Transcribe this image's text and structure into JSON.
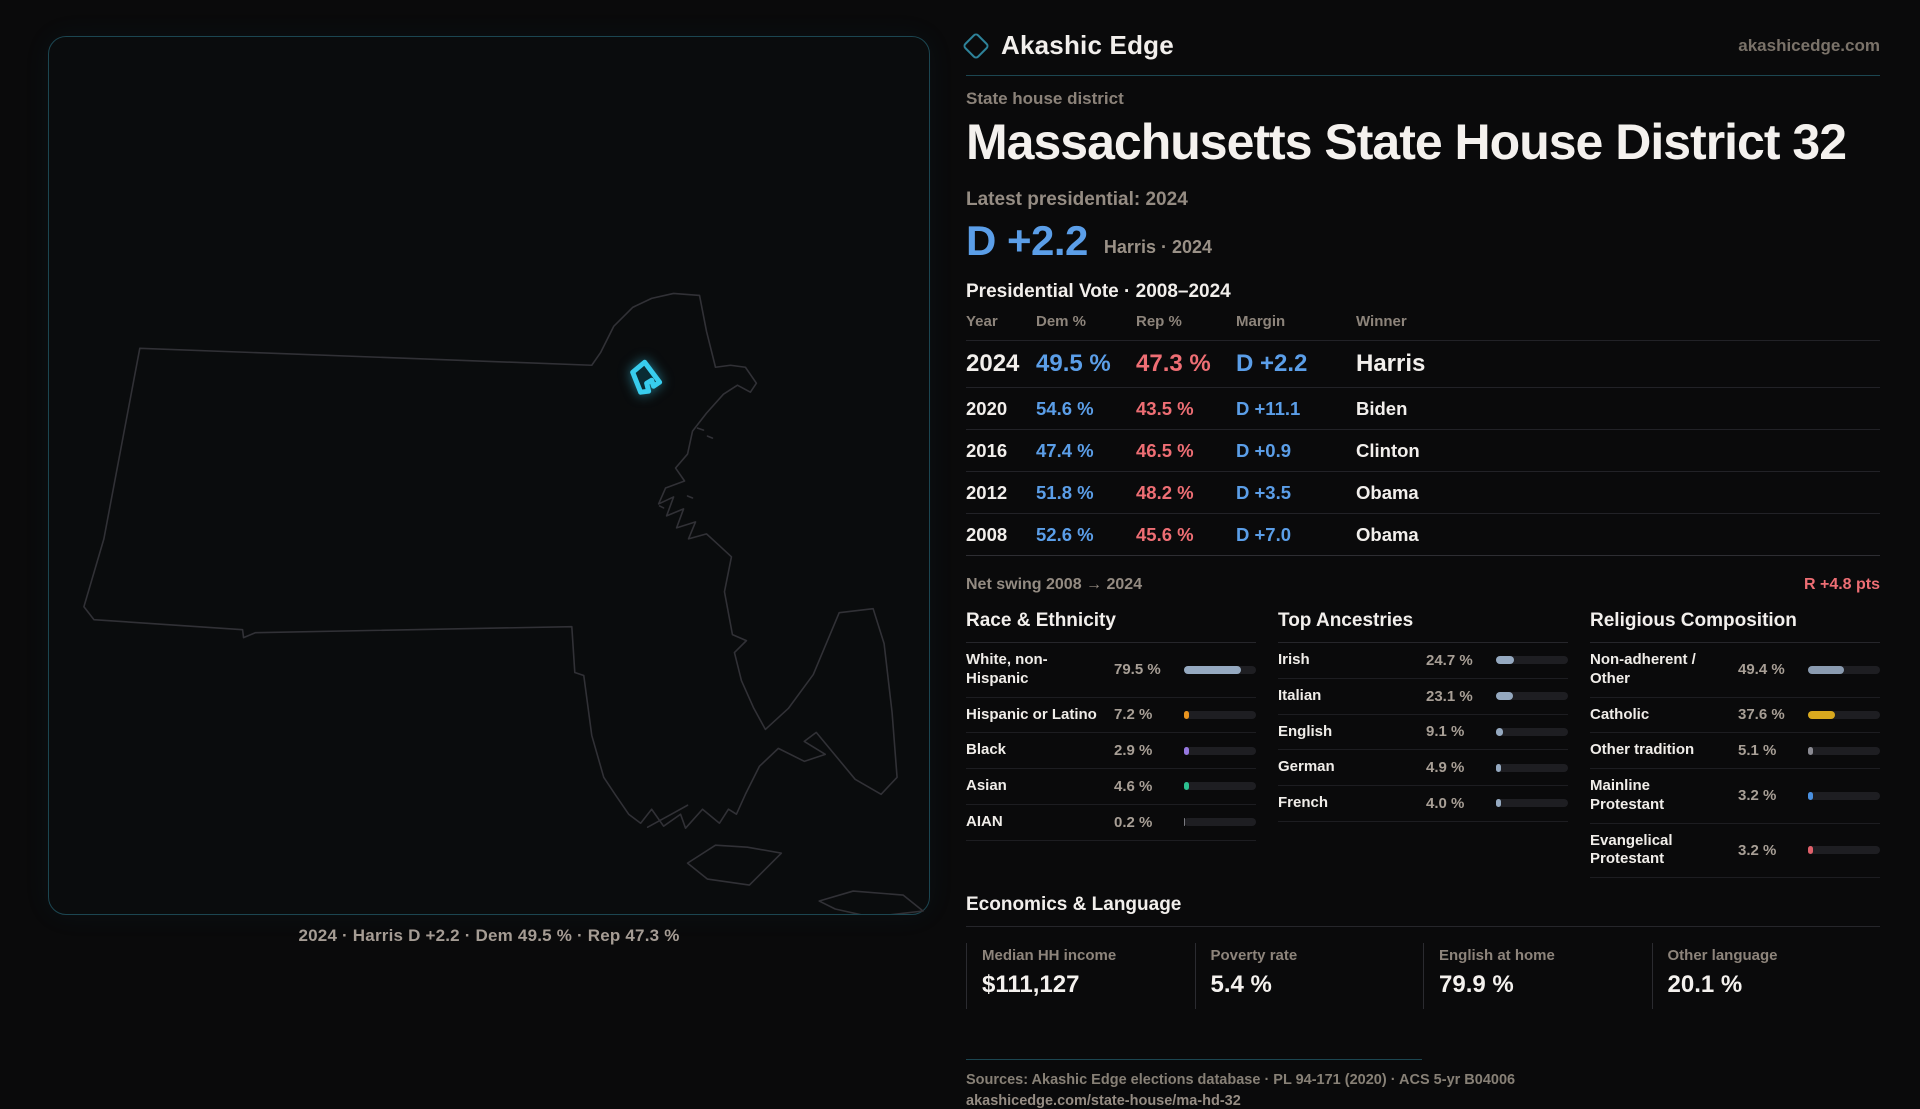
{
  "brand": {
    "name": "Akashic Edge",
    "domain": "akashicedge.com"
  },
  "page": {
    "kicker": "State house district",
    "title": "Massachusetts State House District 32",
    "latest_label": "Latest presidential: 2024",
    "margin_big": "D +2.2",
    "margin_sub": "Harris · 2024"
  },
  "table": {
    "title": "Presidential Vote · 2008–2024",
    "columns": [
      "Year",
      "Dem %",
      "Rep %",
      "Margin",
      "Winner"
    ],
    "rows": [
      {
        "year": "2024",
        "dem": "49.5 %",
        "rep": "47.3 %",
        "margin": "D +2.2",
        "winner": "Harris",
        "featured": true
      },
      {
        "year": "2020",
        "dem": "54.6 %",
        "rep": "43.5 %",
        "margin": "D +11.1",
        "winner": "Biden"
      },
      {
        "year": "2016",
        "dem": "47.4 %",
        "rep": "46.5 %",
        "margin": "D +0.9",
        "winner": "Clinton"
      },
      {
        "year": "2012",
        "dem": "51.8 %",
        "rep": "48.2 %",
        "margin": "D +3.5",
        "winner": "Obama"
      },
      {
        "year": "2008",
        "dem": "52.6 %",
        "rep": "45.6 %",
        "margin": "D +7.0",
        "winner": "Obama"
      }
    ],
    "net_swing_label": "Net swing 2008 → 2024",
    "net_swing_value": "R +4.8 pts"
  },
  "demographics": {
    "groups": [
      {
        "title": "Race & Ethnicity",
        "items": [
          {
            "label": "White, non-Hispanic",
            "value": "79.5 %",
            "pct": 79.5,
            "color": "#95a9c0"
          },
          {
            "label": "Hispanic or Latino",
            "value": "7.2 %",
            "pct": 7.2,
            "color": "#e8941f"
          },
          {
            "label": "Black",
            "value": "2.9 %",
            "pct": 2.9,
            "color": "#9678e0"
          },
          {
            "label": "Asian",
            "value": "4.6 %",
            "pct": 4.6,
            "color": "#2cc090"
          },
          {
            "label": "AIAN",
            "value": "0.2 %",
            "pct": 0.2,
            "color": "#7a7a80"
          }
        ]
      },
      {
        "title": "Top Ancestries",
        "items": [
          {
            "label": "Irish",
            "value": "24.7 %",
            "pct": 24.7,
            "color": "#95a9c0"
          },
          {
            "label": "Italian",
            "value": "23.1 %",
            "pct": 23.1,
            "color": "#95a9c0"
          },
          {
            "label": "English",
            "value": "9.1 %",
            "pct": 9.1,
            "color": "#95a9c0"
          },
          {
            "label": "German",
            "value": "4.9 %",
            "pct": 4.9,
            "color": "#95a9c0"
          },
          {
            "label": "French",
            "value": "4.0 %",
            "pct": 4.0,
            "color": "#95a9c0"
          }
        ]
      },
      {
        "title": "Religious Composition",
        "items": [
          {
            "label": "Non-adherent / Other",
            "value": "49.4 %",
            "pct": 49.4,
            "color": "#8a9bb0"
          },
          {
            "label": "Catholic",
            "value": "37.6 %",
            "pct": 37.6,
            "color": "#d9a91e"
          },
          {
            "label": "Other tradition",
            "value": "5.1 %",
            "pct": 5.1,
            "color": "#8a8a92"
          },
          {
            "label": "Mainline Protestant",
            "value": "3.2 %",
            "pct": 3.2,
            "color": "#4a90e0"
          },
          {
            "label": "Evangelical Protestant",
            "value": "3.2 %",
            "pct": 3.2,
            "color": "#e0606a"
          }
        ]
      }
    ]
  },
  "economics": {
    "title": "Economics & Language",
    "stats": [
      {
        "label": "Median HH income",
        "value": "$111,127"
      },
      {
        "label": "Poverty rate",
        "value": "5.4 %"
      },
      {
        "label": "English at home",
        "value": "79.9 %"
      },
      {
        "label": "Other language",
        "value": "20.1 %"
      }
    ]
  },
  "map": {
    "caption": "2024 · Harris D +2.2 · Dem 49.5 % · Rep 47.3 %"
  },
  "footer": {
    "sources": "Sources: Akashic Edge elections database · PL 94-171 (2020) · ACS 5-yr B04006",
    "permalink": "akashicedge.com/state-house/ma-hd-32"
  },
  "colors": {
    "dem_blue": "#5b9ee8",
    "rep_red": "#ee6e74",
    "accent_cyan": "#38cdee",
    "panel_border_teal": "#1c4651",
    "gold": "#d9a91e"
  }
}
